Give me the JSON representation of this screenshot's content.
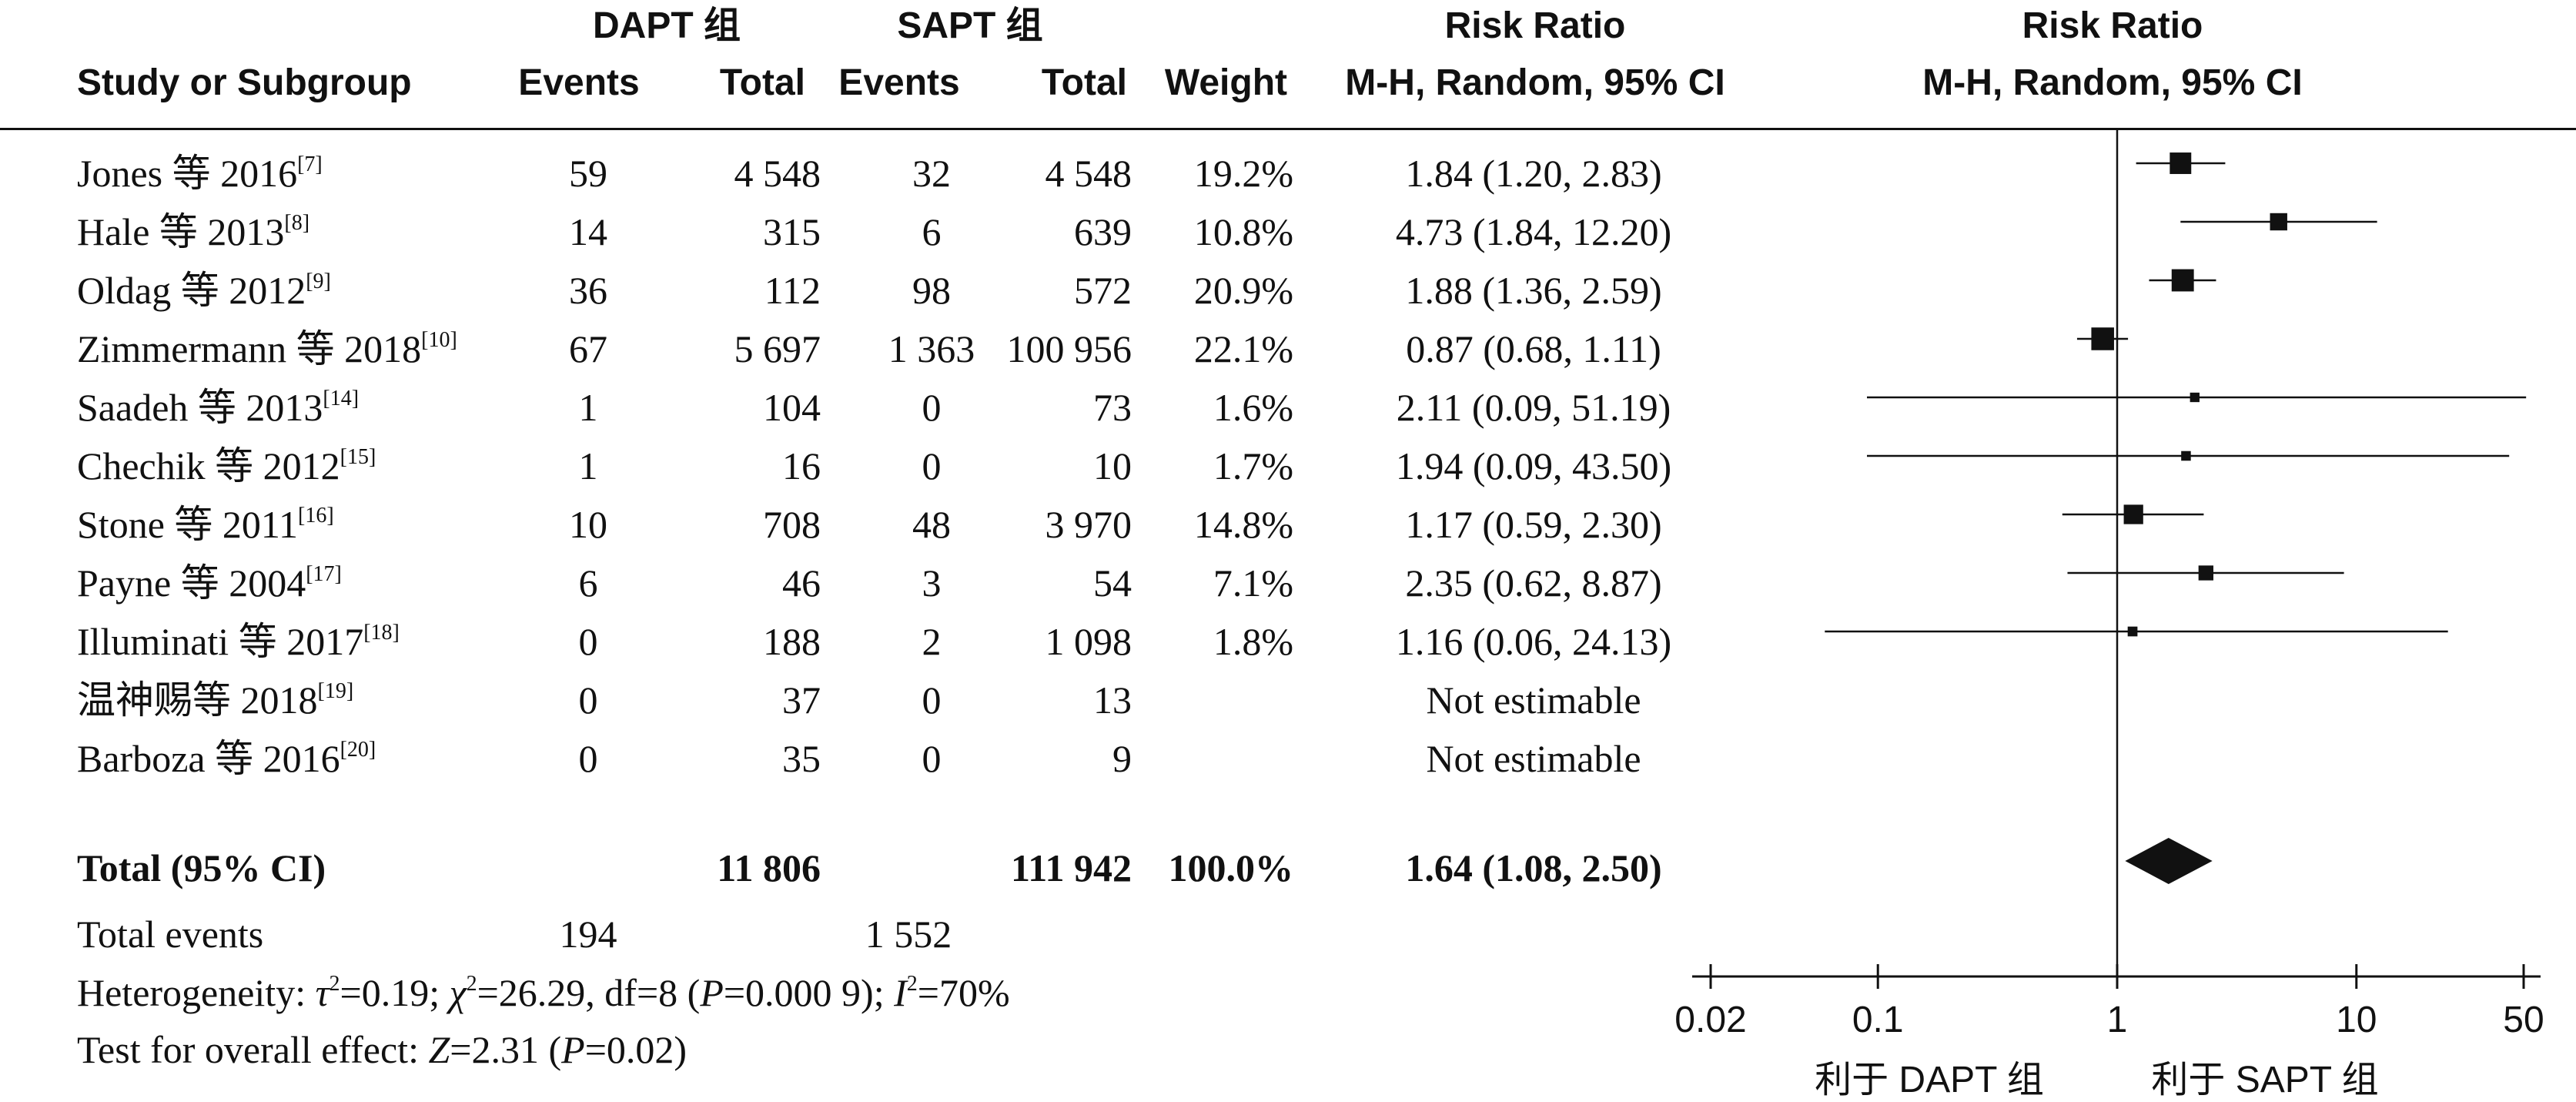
{
  "chart_data": {
    "type": "forest",
    "group_headers": {
      "dapt": "DAPT 组",
      "sapt": "SAPT 组",
      "rr_table": "Risk Ratio",
      "rr_plot": "Risk Ratio"
    },
    "columns": {
      "study": "Study or Subgroup",
      "events1": "Events",
      "total1": "Total",
      "events2": "Events",
      "total2": "Total",
      "weight": "Weight",
      "ci": "M-H, Random, 95% CI",
      "ci_plot": "M-H, Random, 95% CI"
    },
    "studies": [
      {
        "name": "Jones 等 2016",
        "ref": "[7]",
        "events1": "59",
        "total1": "4 548",
        "events2": "32",
        "total2": "4 548",
        "weight": "19.2%",
        "ci": "1.84 (1.20, 2.83)",
        "rr": 1.84,
        "lo": 1.2,
        "hi": 2.83,
        "w": 19.2
      },
      {
        "name": "Hale 等 2013",
        "ref": "[8]",
        "events1": "14",
        "total1": "315",
        "events2": "6",
        "total2": "639",
        "weight": "10.8%",
        "ci": "4.73 (1.84, 12.20)",
        "rr": 4.73,
        "lo": 1.84,
        "hi": 12.2,
        "w": 10.8
      },
      {
        "name": "Oldag 等 2012",
        "ref": "[9]",
        "events1": "36",
        "total1": "112",
        "events2": "98",
        "total2": "572",
        "weight": "20.9%",
        "ci": "1.88 (1.36, 2.59)",
        "rr": 1.88,
        "lo": 1.36,
        "hi": 2.59,
        "w": 20.9
      },
      {
        "name": "Zimmermann 等 2018",
        "ref": "[10]",
        "events1": "67",
        "total1": "5 697",
        "events2": "1 363",
        "total2": "100 956",
        "weight": "22.1%",
        "ci": "0.87 (0.68, 1.11)",
        "rr": 0.87,
        "lo": 0.68,
        "hi": 1.11,
        "w": 22.1
      },
      {
        "name": "Saadeh 等 2013",
        "ref": "[14]",
        "events1": "1",
        "total1": "104",
        "events2": "0",
        "total2": "73",
        "weight": "1.6%",
        "ci": "2.11 (0.09, 51.19)",
        "rr": 2.11,
        "lo": 0.09,
        "hi": 51.19,
        "w": 1.6
      },
      {
        "name": "Chechik 等 2012",
        "ref": "[15]",
        "events1": "1",
        "total1": "16",
        "events2": "0",
        "total2": "10",
        "weight": "1.7%",
        "ci": "1.94 (0.09, 43.50)",
        "rr": 1.94,
        "lo": 0.09,
        "hi": 43.5,
        "w": 1.7
      },
      {
        "name": "Stone 等 2011",
        "ref": "[16]",
        "events1": "10",
        "total1": "708",
        "events2": "48",
        "total2": "3 970",
        "weight": "14.8%",
        "ci": "1.17 (0.59, 2.30)",
        "rr": 1.17,
        "lo": 0.59,
        "hi": 2.3,
        "w": 14.8
      },
      {
        "name": "Payne 等 2004",
        "ref": "[17]",
        "events1": "6",
        "total1": "46",
        "events2": "3",
        "total2": "54",
        "weight": "7.1%",
        "ci": "2.35 (0.62, 8.87)",
        "rr": 2.35,
        "lo": 0.62,
        "hi": 8.87,
        "w": 7.1
      },
      {
        "name": "Illuminati 等 2017",
        "ref": "[18]",
        "events1": "0",
        "total1": "188",
        "events2": "2",
        "total2": "1 098",
        "weight": "1.8%",
        "ci": "1.16 (0.06, 24.13)",
        "rr": 1.16,
        "lo": 0.06,
        "hi": 24.13,
        "w": 1.8
      },
      {
        "name": "温神赐等 2018",
        "ref": "[19]",
        "events1": "0",
        "total1": "37",
        "events2": "0",
        "total2": "13",
        "weight": "",
        "ci": "Not estimable",
        "rr": null,
        "lo": null,
        "hi": null,
        "w": 0
      },
      {
        "name": "Barboza 等 2016",
        "ref": "[20]",
        "events1": "0",
        "total1": "35",
        "events2": "0",
        "total2": "9",
        "weight": "",
        "ci": "Not estimable",
        "rr": null,
        "lo": null,
        "hi": null,
        "w": 0
      }
    ],
    "total": {
      "label": "Total (95% CI)",
      "total1": "11 806",
      "total2": "111 942",
      "weight": "100.0%",
      "ci": "1.64 (1.08, 2.50)",
      "rr": 1.64,
      "lo": 1.08,
      "hi": 2.5
    },
    "total_events": {
      "label": "Total events",
      "events1": "194",
      "events2": "1 552"
    },
    "heterogeneity": {
      "prefix": "Heterogeneity: ",
      "tau_sym": "τ",
      "tau_val": "=0.19; ",
      "chi_sym": "χ",
      "chi_val": "=26.29, df=8 (",
      "p_sym": "P",
      "p_val": "=0.000 9); ",
      "i_sym": "I",
      "i_val": "=70%",
      "sq": "2"
    },
    "overall": {
      "prefix": "Test for overall effect: ",
      "z_sym": "Z",
      "z_val": "=2.31 (",
      "p_sym": "P",
      "p_val": "=0.02)"
    },
    "axis": {
      "scale": "log",
      "ticks": [
        0.02,
        0.1,
        1,
        10,
        50
      ],
      "tick_labels": [
        "0.02",
        "0.1",
        "1",
        "10",
        "50"
      ],
      "range": [
        0.02,
        50
      ],
      "favors_left": "利于 DAPT 组",
      "favors_right": "利于 SAPT 组"
    },
    "colors": {
      "ink": "#111111"
    }
  }
}
